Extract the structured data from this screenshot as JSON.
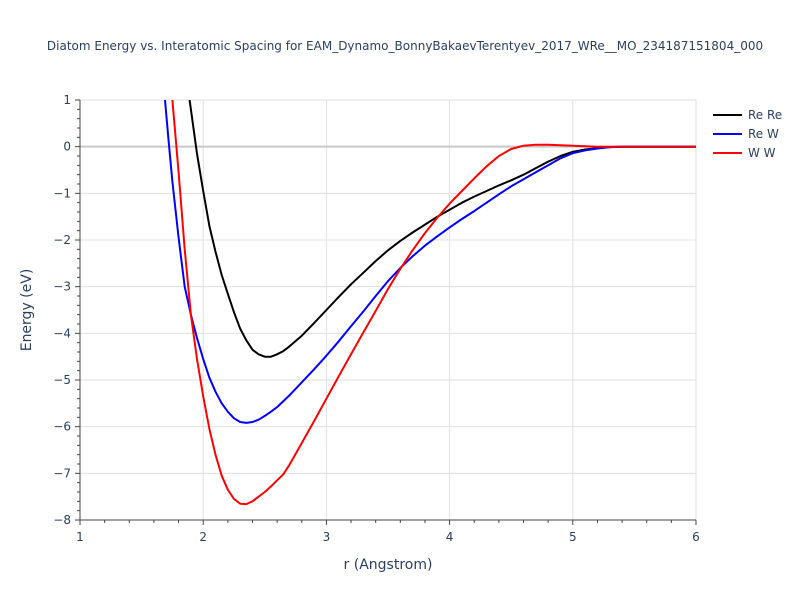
{
  "chart_data": {
    "type": "line",
    "title": "Diatom Energy vs. Interatomic Spacing for EAM_Dynamo_BonnyBakaevTerentyev_2017_WRe__MO_234187151804_000",
    "xlabel": "r (Angstrom)",
    "ylabel": "Energy (eV)",
    "xlim": [
      1,
      6
    ],
    "ylim": [
      -8,
      1
    ],
    "xticks": [
      1,
      2,
      3,
      4,
      5,
      6
    ],
    "yticks": [
      1,
      0,
      -1,
      -2,
      -3,
      -4,
      -5,
      -6,
      -7,
      -8
    ],
    "grid": true,
    "legend_position": "top-right",
    "series": [
      {
        "name": "Re Re",
        "color": "#000000",
        "x": [
          1.89,
          1.95,
          2.0,
          2.05,
          2.1,
          2.15,
          2.2,
          2.25,
          2.3,
          2.35,
          2.4,
          2.45,
          2.5,
          2.55,
          2.6,
          2.65,
          2.7,
          2.8,
          2.9,
          3.0,
          3.1,
          3.2,
          3.3,
          3.4,
          3.5,
          3.6,
          3.7,
          3.8,
          3.9,
          4.0,
          4.1,
          4.2,
          4.3,
          4.4,
          4.5,
          4.6,
          4.7,
          4.8,
          4.9,
          5.0,
          5.1,
          5.2,
          5.3,
          5.4,
          5.5,
          6.0
        ],
        "y": [
          1.0,
          -0.15,
          -0.95,
          -1.7,
          -2.25,
          -2.75,
          -3.15,
          -3.55,
          -3.9,
          -4.15,
          -4.35,
          -4.45,
          -4.5,
          -4.5,
          -4.45,
          -4.38,
          -4.28,
          -4.05,
          -3.78,
          -3.5,
          -3.22,
          -2.95,
          -2.7,
          -2.45,
          -2.22,
          -2.02,
          -1.84,
          -1.67,
          -1.5,
          -1.35,
          -1.2,
          -1.07,
          -0.95,
          -0.83,
          -0.72,
          -0.6,
          -0.46,
          -0.32,
          -0.2,
          -0.11,
          -0.06,
          -0.03,
          -0.01,
          0.0,
          0.0,
          0.0
        ]
      },
      {
        "name": "Re W",
        "color": "#0000ff",
        "x": [
          1.69,
          1.72,
          1.75,
          1.8,
          1.85,
          1.9,
          1.95,
          2.0,
          2.05,
          2.1,
          2.15,
          2.2,
          2.25,
          2.3,
          2.35,
          2.4,
          2.45,
          2.5,
          2.55,
          2.6,
          2.7,
          2.8,
          2.9,
          3.0,
          3.1,
          3.2,
          3.3,
          3.4,
          3.5,
          3.6,
          3.7,
          3.8,
          3.9,
          4.0,
          4.1,
          4.2,
          4.3,
          4.4,
          4.5,
          4.6,
          4.7,
          4.8,
          4.9,
          5.0,
          5.1,
          5.2,
          5.3,
          5.4,
          6.0
        ],
        "y": [
          1.0,
          0.1,
          -0.75,
          -1.95,
          -3.0,
          -3.6,
          -4.1,
          -4.55,
          -4.95,
          -5.25,
          -5.5,
          -5.68,
          -5.82,
          -5.9,
          -5.92,
          -5.9,
          -5.85,
          -5.77,
          -5.68,
          -5.58,
          -5.33,
          -5.05,
          -4.77,
          -4.48,
          -4.17,
          -3.85,
          -3.53,
          -3.2,
          -2.88,
          -2.6,
          -2.35,
          -2.12,
          -1.92,
          -1.73,
          -1.55,
          -1.38,
          -1.2,
          -1.02,
          -0.85,
          -0.7,
          -0.55,
          -0.4,
          -0.25,
          -0.14,
          -0.08,
          -0.04,
          -0.01,
          0.0,
          0.0
        ]
      },
      {
        "name": "W W",
        "color": "#ff0000",
        "x": [
          1.75,
          1.8,
          1.85,
          1.9,
          1.95,
          2.0,
          2.05,
          2.1,
          2.15,
          2.2,
          2.25,
          2.3,
          2.35,
          2.4,
          2.45,
          2.5,
          2.55,
          2.6,
          2.65,
          2.7,
          2.8,
          2.9,
          3.0,
          3.1,
          3.2,
          3.3,
          3.4,
          3.5,
          3.6,
          3.7,
          3.8,
          3.9,
          4.0,
          4.1,
          4.2,
          4.3,
          4.4,
          4.5,
          4.6,
          4.7,
          4.8,
          4.9,
          5.0,
          5.1,
          5.2,
          5.3,
          5.4,
          5.5,
          6.0
        ],
        "y": [
          1.0,
          -0.55,
          -2.2,
          -3.6,
          -4.55,
          -5.35,
          -6.05,
          -6.6,
          -7.05,
          -7.35,
          -7.55,
          -7.65,
          -7.66,
          -7.6,
          -7.5,
          -7.4,
          -7.28,
          -7.15,
          -7.02,
          -6.82,
          -6.35,
          -5.88,
          -5.4,
          -4.92,
          -4.45,
          -3.98,
          -3.52,
          -3.05,
          -2.62,
          -2.22,
          -1.85,
          -1.52,
          -1.22,
          -0.95,
          -0.68,
          -0.42,
          -0.2,
          -0.05,
          0.02,
          0.04,
          0.04,
          0.03,
          0.02,
          0.01,
          0.0,
          0.0,
          0.0,
          0.0,
          0.0
        ]
      }
    ]
  }
}
